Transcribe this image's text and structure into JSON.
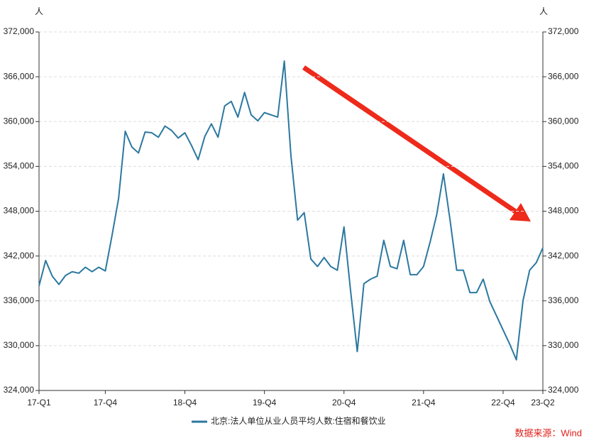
{
  "chart_data": {
    "type": "line",
    "y_label": "人",
    "y2_label": "人",
    "source": "数据来源：Wind",
    "categories": [
      "17-Q1",
      null,
      null,
      null,
      null,
      null,
      null,
      null,
      null,
      null,
      "17-Q4",
      null,
      null,
      null,
      null,
      null,
      null,
      null,
      null,
      null,
      null,
      null,
      "18-Q4",
      null,
      null,
      null,
      null,
      null,
      null,
      null,
      null,
      null,
      null,
      null,
      "19-Q4",
      null,
      null,
      null,
      null,
      null,
      null,
      null,
      null,
      null,
      null,
      null,
      "20-Q4",
      null,
      null,
      null,
      null,
      null,
      null,
      null,
      null,
      null,
      null,
      null,
      "21-Q4",
      null,
      null,
      null,
      null,
      null,
      null,
      null,
      null,
      null,
      null,
      null,
      "22-Q4",
      null,
      null,
      null,
      null,
      null,
      "23-Q2"
    ],
    "series": [
      {
        "name": "北京:法人单位从业人员平均人数:住宿和餐饮业",
        "color": "#2b78a0",
        "values": [
          338000,
          341400,
          339300,
          338200,
          339400,
          339900,
          339700,
          340500,
          339900,
          340500,
          340000,
          344700,
          349700,
          358700,
          356600,
          355800,
          358600,
          358500,
          357900,
          359400,
          358800,
          357800,
          358500,
          356800,
          354900,
          358000,
          359700,
          357900,
          362100,
          362700,
          360600,
          363900,
          360900,
          360100,
          361200,
          360900,
          360600,
          368100,
          355400,
          346800,
          347800,
          341600,
          340600,
          341800,
          340600,
          340100,
          345900,
          337300,
          329200,
          338300,
          338900,
          339300,
          344100,
          340600,
          340300,
          344100,
          339500,
          339500,
          340600,
          343900,
          347600,
          353000,
          346800,
          340100,
          340100,
          337100,
          337100,
          338900,
          335900,
          334000,
          332100,
          330200,
          328100,
          336000,
          340100,
          341100,
          343100
        ]
      }
    ],
    "ylim": [
      324000,
      372000
    ],
    "yticks": [
      {
        "value": 324000,
        "label": "324,000"
      },
      {
        "value": 330000,
        "label": "330,000"
      },
      {
        "value": 336000,
        "label": "336,000"
      },
      {
        "value": 342000,
        "label": "342,000"
      },
      {
        "value": 348000,
        "label": "348,000"
      },
      {
        "value": 354000,
        "label": "354,000"
      },
      {
        "value": 360000,
        "label": "360,000"
      },
      {
        "value": 366000,
        "label": "366,000"
      },
      {
        "value": 372000,
        "label": "372,000"
      }
    ],
    "y2lim": [
      324000,
      372000
    ],
    "y2ticks": [
      {
        "value": 324000,
        "label": "324,000"
      },
      {
        "value": 330000,
        "label": "330,000"
      },
      {
        "value": 336000,
        "label": "336,000"
      },
      {
        "value": 342000,
        "label": "342,000"
      },
      {
        "value": 348000,
        "label": "348,000"
      },
      {
        "value": 354000,
        "label": "354,000"
      },
      {
        "value": 360000,
        "label": "360,000"
      },
      {
        "value": 366000,
        "label": "366,000"
      },
      {
        "value": 372000,
        "label": "372,000"
      }
    ],
    "grid": true
  }
}
